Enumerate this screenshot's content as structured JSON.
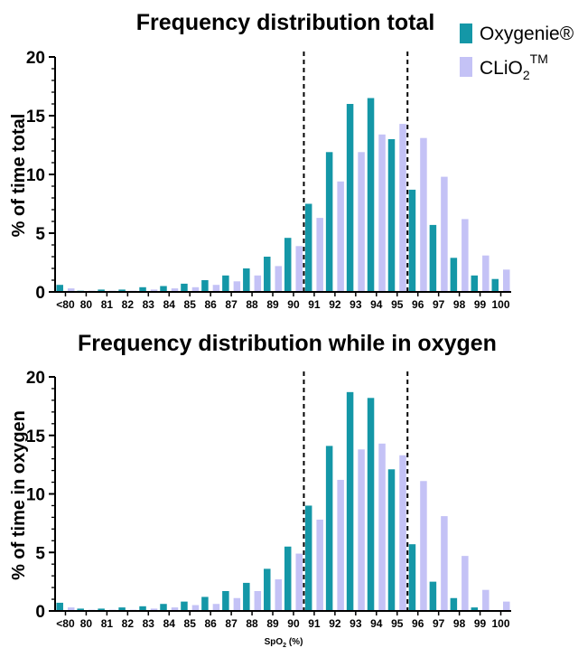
{
  "legend": {
    "items": [
      {
        "label": "Oxygenie®",
        "color": "#1497a7"
      },
      {
        "label": "CLiO",
        "sub": "2",
        "sup": "TM",
        "color": "#c4c2f6"
      }
    ]
  },
  "chart_data": [
    {
      "type": "bar",
      "title": "Frequency distribution total",
      "ylabel": "% of time total",
      "xlabel": "",
      "ylim": [
        0,
        20
      ],
      "yticks": [
        "0",
        "5",
        "10",
        "15",
        "20"
      ],
      "categories": [
        "<80",
        "80",
        "81",
        "82",
        "83",
        "84",
        "85",
        "86",
        "87",
        "88",
        "89",
        "90",
        "91",
        "92",
        "93",
        "94",
        "95",
        "96",
        "97",
        "98",
        "99",
        "100"
      ],
      "reference_lines": [
        "between 90 and 91",
        "between 95 and 96"
      ],
      "series": [
        {
          "name": "Oxygenie®",
          "color": "#1497a7",
          "values": [
            0.6,
            0.1,
            0.2,
            0.2,
            0.4,
            0.5,
            0.7,
            1.0,
            1.4,
            2.0,
            3.0,
            4.6,
            7.5,
            11.9,
            16.0,
            16.5,
            13.0,
            8.7,
            5.7,
            2.9,
            1.4,
            1.1
          ]
        },
        {
          "name": "CLiO2TM",
          "color": "#c4c2f6",
          "values": [
            0.3,
            0.1,
            0.1,
            0.1,
            0.2,
            0.3,
            0.4,
            0.6,
            0.9,
            1.4,
            2.2,
            3.9,
            6.3,
            9.4,
            11.9,
            13.4,
            14.3,
            13.1,
            9.8,
            6.2,
            3.1,
            1.9
          ]
        }
      ]
    },
    {
      "type": "bar",
      "title": "Frequency distribution while in oxygen",
      "ylabel": "% of time in oxygen",
      "xlabel": "SpO2 (%)",
      "ylim": [
        0,
        20
      ],
      "yticks": [
        "0",
        "5",
        "10",
        "15",
        "20"
      ],
      "categories": [
        "<80",
        "80",
        "81",
        "82",
        "83",
        "84",
        "85",
        "86",
        "87",
        "88",
        "89",
        "90",
        "91",
        "92",
        "93",
        "94",
        "95",
        "96",
        "97",
        "98",
        "99",
        "100"
      ],
      "reference_lines": [
        "between 90 and 91",
        "between 95 and 96"
      ],
      "series": [
        {
          "name": "Oxygenie®",
          "color": "#1497a7",
          "values": [
            0.7,
            0.2,
            0.2,
            0.3,
            0.4,
            0.6,
            0.8,
            1.2,
            1.7,
            2.4,
            3.6,
            5.5,
            9.0,
            14.1,
            18.7,
            18.2,
            12.1,
            5.7,
            2.5,
            1.1,
            0.3,
            0.0
          ]
        },
        {
          "name": "CLiO2TM",
          "color": "#c4c2f6",
          "values": [
            0.3,
            0.1,
            0.1,
            0.1,
            0.2,
            0.3,
            0.5,
            0.6,
            1.1,
            1.7,
            2.7,
            4.9,
            7.8,
            11.2,
            13.8,
            14.3,
            13.3,
            11.1,
            8.1,
            4.7,
            1.8,
            0.8
          ]
        }
      ]
    }
  ]
}
